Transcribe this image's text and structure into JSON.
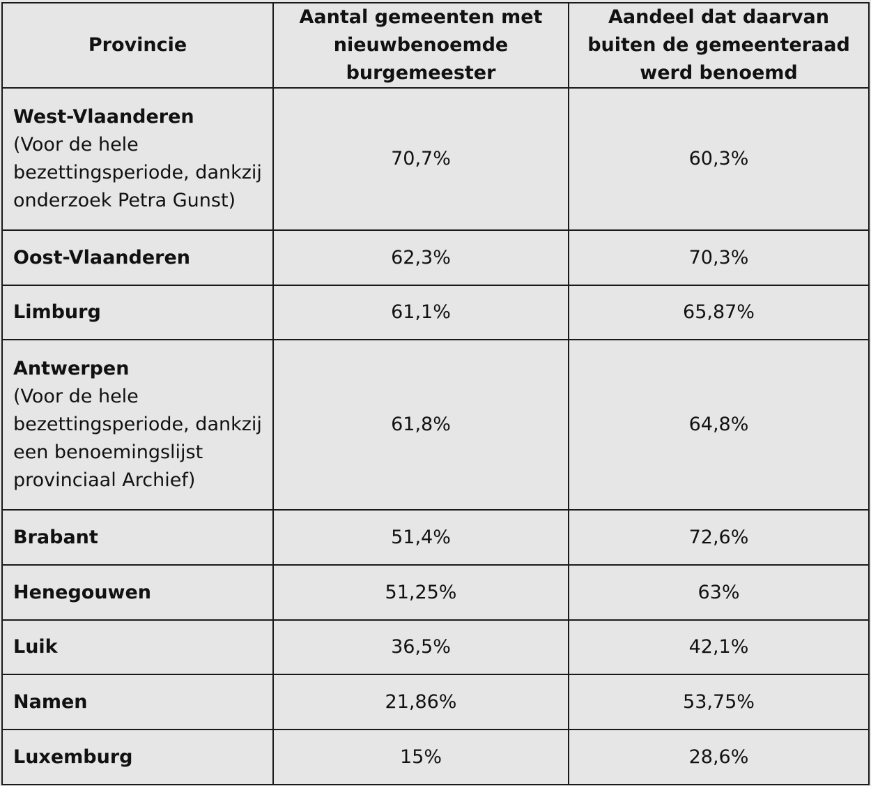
{
  "headers": {
    "provincie": "Provincie",
    "aantal": "Aantal gemeenten met nieuwbenoemde burgemeester",
    "aandeel": "Aandeel dat daarvan buiten de gemeenteraad werd benoemd"
  },
  "rows": [
    {
      "provincie": "West-Vlaanderen",
      "note": "(Voor de hele bezettingsperiode, dankzij onderzoek Petra Gunst)",
      "aantal": "70,7%",
      "aandeel": "60,3%"
    },
    {
      "provincie": "Oost-Vlaanderen",
      "note": "",
      "aantal": "62,3%",
      "aandeel": "70,3%"
    },
    {
      "provincie": "Limburg",
      "note": "",
      "aantal": "61,1%",
      "aandeel": "65,87%"
    },
    {
      "provincie": "Antwerpen",
      "note": "(Voor de hele bezettingsperiode, dankzij een benoemingslijst provinciaal Archief)",
      "aantal": "61,8%",
      "aandeel": "64,8%"
    },
    {
      "provincie": "Brabant",
      "note": "",
      "aantal": "51,4%",
      "aandeel": "72,6%"
    },
    {
      "provincie": "Henegouwen",
      "note": "",
      "aantal": "51,25%",
      "aandeel": "63%"
    },
    {
      "provincie": "Luik",
      "note": "",
      "aantal": "36,5%",
      "aandeel": "42,1%"
    },
    {
      "provincie": "Namen",
      "note": "",
      "aantal": "21,86%",
      "aandeel": "53,75%"
    },
    {
      "provincie": "Luxemburg",
      "note": "",
      "aantal": "15%",
      "aandeel": "28,6%"
    }
  ]
}
